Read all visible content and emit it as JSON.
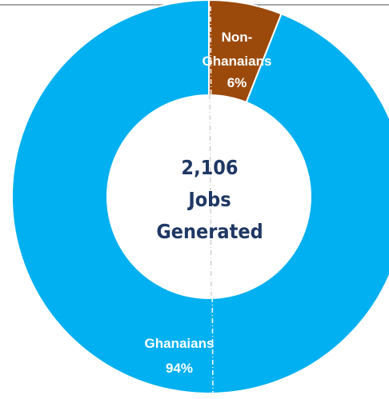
{
  "chart_data": {
    "type": "pie",
    "variant": "donut",
    "categories": [
      "Non-Ghanaians",
      "Ghanaians"
    ],
    "values": [
      6,
      94
    ],
    "unit": "%",
    "colors": [
      "#9c4a0c",
      "#00b0f0"
    ],
    "center_label": [
      "2,106",
      "Jobs",
      "Generated"
    ],
    "slice_labels": [
      [
        "Non-",
        "Ghanaians",
        "6%"
      ],
      [
        "Ghanaians",
        "94%"
      ]
    ],
    "legend": "none"
  }
}
